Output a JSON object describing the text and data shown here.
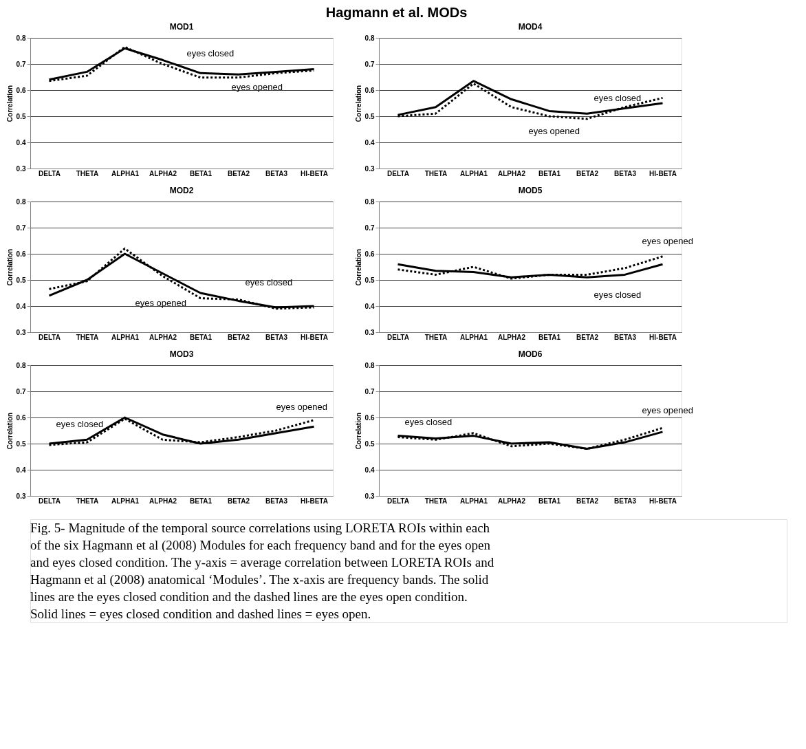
{
  "chart_data": [
    {
      "type": "line",
      "title": "MOD1",
      "ylabel": "Correlation",
      "categories": [
        "DELTA",
        "THETA",
        "ALPHA1",
        "ALPHA2",
        "BETA1",
        "BETA2",
        "BETA3",
        "HI-BETA"
      ],
      "ylim": [
        0.3,
        0.8
      ],
      "yticks": [
        0.3,
        0.4,
        0.5,
        0.6,
        0.7,
        0.8
      ],
      "grid": "y",
      "legend": false,
      "marker": "none",
      "annotations": [
        "Hagmann et al. MODs"
      ],
      "series": [
        {
          "name": "eyes closed",
          "color": "#000000",
          "line_style": "solid",
          "values": [
            0.64,
            0.67,
            0.76,
            0.715,
            0.665,
            0.66,
            0.67,
            0.68
          ]
        },
        {
          "name": "eyes opened",
          "color": "#000000",
          "line_style": "dotted",
          "values": [
            0.635,
            0.655,
            0.765,
            0.7,
            0.648,
            0.648,
            0.665,
            0.675
          ]
        }
      ]
    },
    {
      "type": "line",
      "title": "MOD4",
      "ylabel": "Correlation",
      "categories": [
        "DELTA",
        "THETA",
        "ALPHA1",
        "ALPHA2",
        "BETA1",
        "BETA2",
        "BETA3",
        "HI-BETA"
      ],
      "ylim": [
        0.3,
        0.8
      ],
      "yticks": [
        0.3,
        0.4,
        0.5,
        0.6,
        0.7,
        0.8
      ],
      "grid": "y",
      "legend": false,
      "marker": "none",
      "series": [
        {
          "name": "eyes closed",
          "color": "#000000",
          "line_style": "solid",
          "values": [
            0.505,
            0.535,
            0.635,
            0.565,
            0.52,
            0.51,
            0.53,
            0.55
          ]
        },
        {
          "name": "eyes opened",
          "color": "#000000",
          "line_style": "dotted",
          "values": [
            0.5,
            0.51,
            0.625,
            0.535,
            0.5,
            0.49,
            0.535,
            0.57
          ]
        }
      ]
    },
    {
      "type": "line",
      "title": "MOD2",
      "ylabel": "Correlation",
      "categories": [
        "DELTA",
        "THETA",
        "ALPHA1",
        "ALPHA2",
        "BETA1",
        "BETA2",
        "BETA3",
        "HI-BETA"
      ],
      "ylim": [
        0.3,
        0.8
      ],
      "yticks": [
        0.3,
        0.4,
        0.5,
        0.6,
        0.7,
        0.8
      ],
      "grid": "y",
      "legend": false,
      "marker": "none",
      "series": [
        {
          "name": "eyes closed",
          "color": "#000000",
          "line_style": "solid",
          "values": [
            0.44,
            0.5,
            0.6,
            0.525,
            0.45,
            0.42,
            0.395,
            0.4
          ]
        },
        {
          "name": "eyes opened",
          "color": "#000000",
          "line_style": "dotted",
          "values": [
            0.465,
            0.495,
            0.62,
            0.515,
            0.43,
            0.425,
            0.39,
            0.395
          ]
        }
      ]
    },
    {
      "type": "line",
      "title": "MOD5",
      "ylabel": "Correlation",
      "categories": [
        "DELTA",
        "THETA",
        "ALPHA1",
        "ALPHA2",
        "BETA1",
        "BETA2",
        "BETA3",
        "HI-BETA"
      ],
      "ylim": [
        0.3,
        0.8
      ],
      "yticks": [
        0.3,
        0.4,
        0.5,
        0.6,
        0.7,
        0.8
      ],
      "grid": "y",
      "legend": false,
      "marker": "none",
      "series": [
        {
          "name": "eyes closed",
          "color": "#000000",
          "line_style": "solid",
          "values": [
            0.56,
            0.535,
            0.53,
            0.51,
            0.52,
            0.51,
            0.52,
            0.56
          ]
        },
        {
          "name": "eyes opened",
          "color": "#000000",
          "line_style": "dotted",
          "values": [
            0.54,
            0.52,
            0.55,
            0.505,
            0.52,
            0.52,
            0.545,
            0.59
          ]
        }
      ]
    },
    {
      "type": "line",
      "title": "MOD3",
      "ylabel": "Correlation",
      "categories": [
        "DELTA",
        "THETA",
        "ALPHA1",
        "ALPHA2",
        "BETA1",
        "BETA2",
        "BETA3",
        "HI-BETA"
      ],
      "ylim": [
        0.3,
        0.8
      ],
      "yticks": [
        0.3,
        0.4,
        0.5,
        0.6,
        0.7,
        0.8
      ],
      "grid": "y",
      "legend": false,
      "marker": "none",
      "series": [
        {
          "name": "eyes closed",
          "color": "#000000",
          "line_style": "solid",
          "values": [
            0.5,
            0.515,
            0.6,
            0.535,
            0.5,
            0.515,
            0.54,
            0.565
          ]
        },
        {
          "name": "eyes opened",
          "color": "#000000",
          "line_style": "dotted",
          "values": [
            0.495,
            0.505,
            0.595,
            0.515,
            0.505,
            0.525,
            0.55,
            0.59
          ]
        }
      ]
    },
    {
      "type": "line",
      "title": "MOD6",
      "ylabel": "Correlation",
      "categories": [
        "DELTA",
        "THETA",
        "ALPHA1",
        "ALPHA2",
        "BETA1",
        "BETA2",
        "BETA3",
        "HI-BETA"
      ],
      "ylim": [
        0.3,
        0.8
      ],
      "yticks": [
        0.3,
        0.4,
        0.5,
        0.6,
        0.7,
        0.8
      ],
      "grid": "y",
      "legend": false,
      "marker": "none",
      "annotations": [
        "Fig. 5- Magnitude of the temporal source correlations using LORETA ROIs within each",
        "of the six Hagmann et al (2008) Modules for each frequency band and for the eyes open",
        "and eyes closed condition.  The y-axis = average correlation between LORETA ROIs and",
        "Hagmann et al (2008) anatomical ‘Modules’.   The x-axis are frequency bands.  The solid",
        "lines are the eyes closed  condition and the dashed lines are the eyes open condition.",
        "Solid lines = eyes closed condition and dashed lines = eyes open."
      ],
      "series": [
        {
          "name": "eyes closed",
          "color": "#000000",
          "line_style": "solid",
          "values": [
            0.53,
            0.52,
            0.53,
            0.5,
            0.505,
            0.48,
            0.505,
            0.545
          ]
        },
        {
          "name": "eyes opened",
          "color": "#000000",
          "line_style": "dotted",
          "values": [
            0.525,
            0.515,
            0.54,
            0.49,
            0.5,
            0.48,
            0.515,
            0.56
          ]
        }
      ]
    }
  ]
}
